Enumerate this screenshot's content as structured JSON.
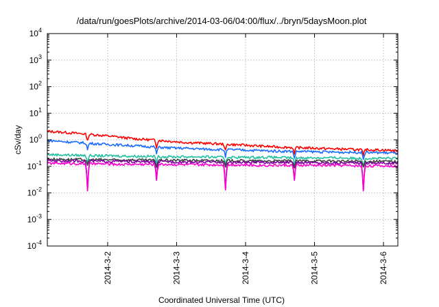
{
  "chart_data": {
    "type": "line",
    "title": "/data/run/goesPlots/archive/2014-03-06/04:00/flux/../bryn/5daysMoon.plot",
    "xlabel": "Coordinated Universal Time (UTC)",
    "ylabel": "cSv/day",
    "yscale": "log",
    "ylim": [
      0.0001,
      10000
    ],
    "xlim": [
      "2014-03-01 03:00",
      "2014-03-06 05:00"
    ],
    "x_ticks": [
      {
        "label": "2014-3-2",
        "value": "2014-03-02 00:00"
      },
      {
        "label": "2014-3-3",
        "value": "2014-03-03 00:00"
      },
      {
        "label": "2014-3-4",
        "value": "2014-03-04 00:00"
      },
      {
        "label": "2014-3-5",
        "value": "2014-03-05 00:00"
      },
      {
        "label": "2014-3-6",
        "value": "2014-03-06 00:00"
      }
    ],
    "y_ticks": [
      {
        "base": "10",
        "exp": "-4",
        "value": 0.0001
      },
      {
        "base": "10",
        "exp": "-3",
        "value": 0.001
      },
      {
        "base": "10",
        "exp": "-2",
        "value": 0.01
      },
      {
        "base": "10",
        "exp": "-1",
        "value": 0.1
      },
      {
        "base": "10",
        "exp": "0",
        "value": 1
      },
      {
        "base": "10",
        "exp": "1",
        "value": 10
      },
      {
        "base": "10",
        "exp": "2",
        "value": 100
      },
      {
        "base": "10",
        "exp": "3",
        "value": 1000
      },
      {
        "base": "10",
        "exp": "4",
        "value": 10000
      }
    ],
    "grid": true,
    "legend": "none",
    "x": [
      "2014-03-01 03:00",
      "2014-03-01 09:00",
      "2014-03-01 15:00",
      "2014-03-01 21:00",
      "2014-03-02 03:00",
      "2014-03-02 09:00",
      "2014-03-02 15:00",
      "2014-03-02 21:00",
      "2014-03-03 03:00",
      "2014-03-03 09:00",
      "2014-03-03 15:00",
      "2014-03-03 21:00",
      "2014-03-04 03:00",
      "2014-03-04 09:00",
      "2014-03-04 15:00",
      "2014-03-04 21:00",
      "2014-03-05 03:00",
      "2014-03-05 09:00",
      "2014-03-05 15:00",
      "2014-03-05 21:00",
      "2014-03-06 03:00",
      "2014-03-06 05:00"
    ],
    "series": [
      {
        "color": "#ff0000",
        "values": [
          2.1,
          1.9,
          1.7,
          1.5,
          1.3,
          1.1,
          1.0,
          0.9,
          0.8,
          0.75,
          0.7,
          0.65,
          0.6,
          0.55,
          0.52,
          0.5,
          0.47,
          0.45,
          0.43,
          0.42,
          0.4,
          0.38
        ]
      },
      {
        "color": "#1a6cff",
        "values": [
          0.95,
          0.85,
          0.78,
          0.7,
          0.65,
          0.6,
          0.55,
          0.5,
          0.48,
          0.45,
          0.43,
          0.42,
          0.4,
          0.38,
          0.37,
          0.36,
          0.35,
          0.34,
          0.34,
          0.33,
          0.32,
          0.31
        ]
      },
      {
        "color": "#20c0a0",
        "values": [
          0.28,
          0.27,
          0.26,
          0.25,
          0.25,
          0.24,
          0.24,
          0.23,
          0.23,
          0.23,
          0.22,
          0.22,
          0.22,
          0.22,
          0.21,
          0.21,
          0.21,
          0.21,
          0.2,
          0.2,
          0.2,
          0.2
        ]
      },
      {
        "color": "#404040",
        "values": [
          0.19,
          0.185,
          0.18,
          0.18,
          0.175,
          0.175,
          0.17,
          0.17,
          0.17,
          0.165,
          0.165,
          0.165,
          0.16,
          0.16,
          0.16,
          0.16,
          0.16,
          0.155,
          0.155,
          0.155,
          0.155,
          0.15
        ]
      },
      {
        "color": "#8000a0",
        "values": [
          0.165,
          0.16,
          0.16,
          0.155,
          0.155,
          0.15,
          0.15,
          0.15,
          0.145,
          0.145,
          0.145,
          0.14,
          0.14,
          0.14,
          0.14,
          0.14,
          0.135,
          0.135,
          0.135,
          0.135,
          0.13,
          0.13
        ]
      },
      {
        "color": "#ff00d0",
        "values": [
          0.13,
          0.13,
          0.125,
          0.125,
          0.12,
          0.12,
          0.12,
          0.12,
          0.115,
          0.115,
          0.115,
          0.115,
          0.11,
          0.11,
          0.11,
          0.11,
          0.11,
          0.11,
          0.105,
          0.105,
          0.105,
          0.1
        ]
      }
    ],
    "dips": [
      {
        "time": "2014-03-01 17:00",
        "min": 0.012
      },
      {
        "time": "2014-03-02 17:00",
        "min": 0.03
      },
      {
        "time": "2014-03-03 17:00",
        "min": 0.013
      },
      {
        "time": "2014-03-04 17:00",
        "min": 0.03
      },
      {
        "time": "2014-03-05 17:00",
        "min": 0.012
      }
    ]
  }
}
